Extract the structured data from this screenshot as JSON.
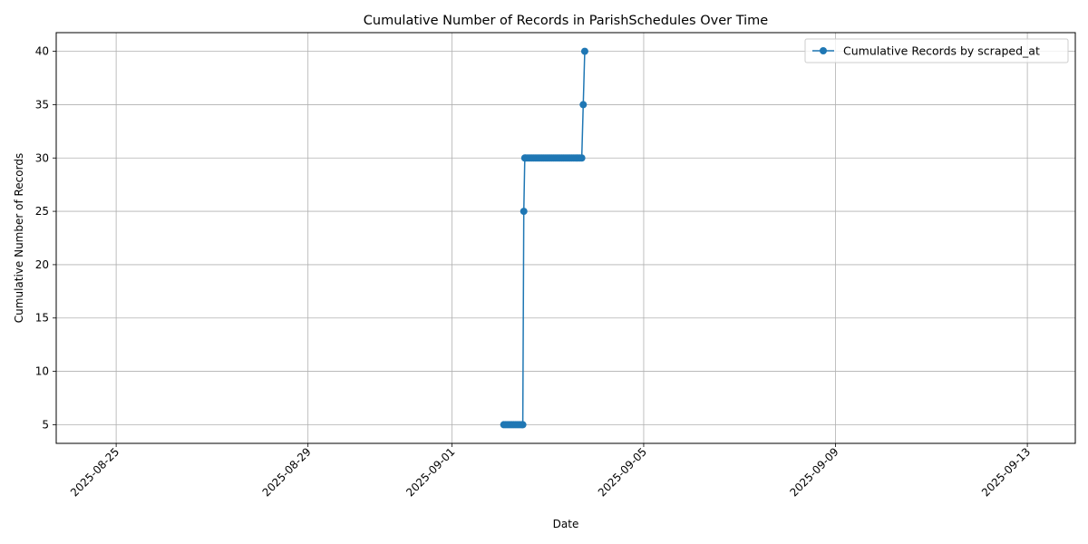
{
  "chart_data": {
    "type": "line",
    "title": "Cumulative Number of Records in ParishSchedules Over Time",
    "xlabel": "Date",
    "ylabel": "Cumulative Number of Records",
    "xlim": [
      "2025-08-23T18:00",
      "2025-09-14T00:00"
    ],
    "ylim": [
      3.25,
      41.75
    ],
    "x_ticks": [
      "2025-08-25",
      "2025-08-29",
      "2025-09-01",
      "2025-09-05",
      "2025-09-09",
      "2025-09-13"
    ],
    "y_ticks": [
      5,
      10,
      15,
      20,
      25,
      30,
      35,
      40
    ],
    "grid": true,
    "legend_position": "top-right",
    "colors": {
      "series": "#1f77b4",
      "grid": "#b0b0b0",
      "axes": "#000000"
    },
    "series": [
      {
        "name": "Cumulative Records by scraped_at",
        "marker": "circle",
        "x": [
          "2025-09-02T02:00",
          "2025-09-02T03:00",
          "2025-09-02T04:00",
          "2025-09-02T05:00",
          "2025-09-02T06:00",
          "2025-09-02T07:00",
          "2025-09-02T08:00",
          "2025-09-02T09:00",
          "2025-09-02T10:00",
          "2025-09-02T11:00",
          "2025-09-02T11:30",
          "2025-09-02T12:00",
          "2025-09-02T12:30",
          "2025-09-02T13:00",
          "2025-09-02T14:00",
          "2025-09-02T15:00",
          "2025-09-02T16:00",
          "2025-09-02T17:00",
          "2025-09-02T18:00",
          "2025-09-02T19:00",
          "2025-09-02T20:00",
          "2025-09-02T21:00",
          "2025-09-02T22:00",
          "2025-09-02T23:00",
          "2025-09-03T00:00",
          "2025-09-03T01:00",
          "2025-09-03T02:00",
          "2025-09-03T03:00",
          "2025-09-03T04:00",
          "2025-09-03T05:00",
          "2025-09-03T06:00",
          "2025-09-03T07:00",
          "2025-09-03T08:00",
          "2025-09-03T09:00",
          "2025-09-03T10:00",
          "2025-09-03T11:00",
          "2025-09-03T12:00",
          "2025-09-03T13:00",
          "2025-09-03T14:00",
          "2025-09-03T15:00",
          "2025-09-03T16:00",
          "2025-09-03T17:00",
          "2025-09-03T17:45",
          "2025-09-03T18:30"
        ],
        "y": [
          5,
          5,
          5,
          5,
          5,
          5,
          5,
          5,
          5,
          5,
          5,
          25,
          30,
          30,
          30,
          30,
          30,
          30,
          30,
          30,
          30,
          30,
          30,
          30,
          30,
          30,
          30,
          30,
          30,
          30,
          30,
          30,
          30,
          30,
          30,
          30,
          30,
          30,
          30,
          30,
          30,
          30,
          35,
          40
        ]
      }
    ]
  }
}
